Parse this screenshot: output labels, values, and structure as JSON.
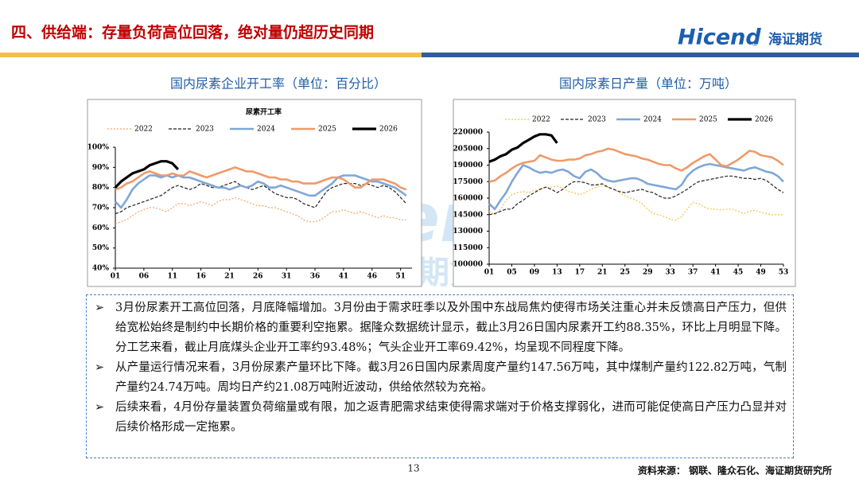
{
  "header": {
    "title": "四、供给端：存量负荷高位回落，绝对量仍超历史同期",
    "logo_en": "Hicend",
    "logo_mark": "®",
    "logo_cn": "海证期货"
  },
  "chart_data": [
    {
      "type": "line",
      "title": "国内尿素企业开工率（单位：百分比）",
      "inner_title": "尿素开工率",
      "x": [
        1,
        2,
        3,
        4,
        5,
        6,
        7,
        8,
        9,
        10,
        11,
        12,
        13,
        14,
        15,
        16,
        17,
        18,
        19,
        20,
        21,
        22,
        23,
        24,
        25,
        26,
        27,
        28,
        29,
        30,
        31,
        32,
        33,
        34,
        35,
        36,
        37,
        38,
        39,
        40,
        41,
        42,
        43,
        44,
        45,
        46,
        47,
        48,
        49,
        50,
        51,
        52
      ],
      "xlim": [
        1,
        53
      ],
      "xticks": [
        {
          "value": 1,
          "label": "01"
        },
        {
          "value": 6,
          "label": "06"
        },
        11,
        16,
        21,
        26,
        31,
        36,
        41,
        46,
        51
      ],
      "ylim": [
        40,
        100
      ],
      "yticks": [
        {
          "value": 40,
          "label": "40%"
        },
        {
          "value": 50,
          "label": "50%"
        },
        {
          "value": 60,
          "label": "60%"
        },
        {
          "value": 70,
          "label": "70%"
        },
        {
          "value": 80,
          "label": "80%"
        },
        {
          "value": 90,
          "label": "90%"
        },
        {
          "value": 100,
          "label": "100%"
        }
      ],
      "series": [
        {
          "name": "2022",
          "color": "#f4a46a",
          "linestyle": "dotted",
          "values": [
            62,
            63,
            64,
            66,
            68,
            69,
            70,
            70,
            69,
            68,
            70,
            72,
            72,
            71,
            72,
            73,
            72,
            71,
            73,
            74,
            74,
            75,
            74,
            73,
            72,
            71,
            71,
            70,
            70,
            69,
            68,
            67,
            66,
            64,
            63,
            63,
            64,
            66,
            68,
            68,
            69,
            68,
            67,
            68,
            67,
            66,
            65,
            66,
            65,
            65,
            64,
            64
          ]
        },
        {
          "name": "2023",
          "color": "#222222",
          "linestyle": "dashed",
          "values": [
            67,
            68,
            70,
            71,
            72,
            73,
            74,
            75,
            76,
            78,
            80,
            81,
            80,
            79,
            80,
            82,
            81,
            80,
            80,
            81,
            82,
            83,
            81,
            80,
            79,
            80,
            81,
            79,
            77,
            76,
            75,
            75,
            74,
            72,
            71,
            70,
            74,
            78,
            80,
            81,
            82,
            82,
            82,
            81,
            82,
            81,
            80,
            81,
            80,
            78,
            75,
            72
          ]
        },
        {
          "name": "2024",
          "color": "#7fa7d8",
          "linestyle": "solid",
          "values": [
            73,
            70,
            74,
            79,
            82,
            84,
            86,
            86,
            85,
            86,
            85,
            86,
            85,
            85,
            84,
            83,
            82,
            81,
            80,
            80,
            79,
            80,
            81,
            80,
            81,
            83,
            82,
            80,
            80,
            81,
            80,
            79,
            78,
            77,
            76,
            76,
            78,
            80,
            82,
            85,
            86,
            86,
            86,
            85,
            84,
            83,
            83,
            82,
            81,
            80,
            78,
            76
          ]
        },
        {
          "name": "2025",
          "color": "#ef9a6a",
          "linestyle": "solid",
          "values": [
            79,
            80,
            82,
            83,
            85,
            87,
            88,
            87,
            86,
            86,
            87,
            86,
            86,
            88,
            87,
            86,
            85,
            86,
            87,
            88,
            89,
            90,
            89,
            88,
            88,
            87,
            86,
            85,
            85,
            84,
            84,
            83,
            83,
            82,
            82,
            82,
            83,
            84,
            85,
            85,
            84,
            82,
            80,
            80,
            82,
            84,
            84,
            84,
            83,
            82,
            80,
            79
          ]
        },
        {
          "name": "2026",
          "color": "#000000",
          "linestyle": "bold",
          "values": [
            80,
            83,
            85,
            87,
            88,
            89,
            91,
            92,
            93,
            93,
            92,
            89,
            null,
            null,
            null,
            null,
            null,
            null,
            null,
            null,
            null,
            null,
            null,
            null,
            null,
            null,
            null,
            null,
            null,
            null,
            null,
            null,
            null,
            null,
            null,
            null,
            null,
            null,
            null,
            null,
            null,
            null,
            null,
            null,
            null,
            null,
            null,
            null,
            null,
            null,
            null,
            null
          ]
        }
      ]
    },
    {
      "type": "line",
      "title": "国内尿素日产量（单位：万吨）",
      "x": [
        1,
        2,
        3,
        4,
        5,
        6,
        7,
        8,
        9,
        10,
        11,
        12,
        13,
        14,
        15,
        16,
        17,
        18,
        19,
        20,
        21,
        22,
        23,
        24,
        25,
        26,
        27,
        28,
        29,
        30,
        31,
        32,
        33,
        34,
        35,
        36,
        37,
        38,
        39,
        40,
        41,
        42,
        43,
        44,
        45,
        46,
        47,
        48,
        49,
        50,
        51,
        52,
        53
      ],
      "xlim": [
        1,
        53
      ],
      "xticks": [
        {
          "value": 1,
          "label": "01"
        },
        {
          "value": 5,
          "label": "05"
        },
        {
          "value": 9,
          "label": "09"
        },
        13,
        17,
        21,
        25,
        29,
        33,
        37,
        41,
        45,
        49,
        53
      ],
      "ylim": [
        100000,
        220000
      ],
      "yticks": [
        100000,
        115000,
        130000,
        145000,
        160000,
        175000,
        190000,
        205000,
        220000
      ],
      "series": [
        {
          "name": "2022",
          "color": "#f5c242",
          "linestyle": "dotted",
          "values": [
            148000,
            145000,
            150000,
            158000,
            163000,
            165000,
            166000,
            165000,
            167000,
            168000,
            170000,
            170000,
            171000,
            169000,
            166000,
            165000,
            163000,
            165000,
            168000,
            170000,
            171000,
            170000,
            168000,
            165000,
            162000,
            160000,
            158000,
            155000,
            150000,
            146000,
            145000,
            143000,
            141000,
            140000,
            143000,
            150000,
            156000,
            155000,
            152000,
            150000,
            150000,
            149000,
            150000,
            150000,
            148000,
            146000,
            148000,
            149000,
            147000,
            146000,
            145000,
            145000,
            145000
          ]
        },
        {
          "name": "2023",
          "color": "#222222",
          "linestyle": "dashed",
          "values": [
            145000,
            146000,
            148000,
            150000,
            150000,
            155000,
            158000,
            162000,
            165000,
            168000,
            170000,
            168000,
            165000,
            168000,
            172000,
            175000,
            175000,
            174000,
            172000,
            172000,
            173000,
            170000,
            168000,
            166000,
            165000,
            166000,
            167000,
            168000,
            166000,
            165000,
            162000,
            160000,
            160000,
            162000,
            165000,
            168000,
            172000,
            175000,
            176000,
            177000,
            178000,
            179000,
            180000,
            180000,
            179000,
            178000,
            178000,
            177000,
            178000,
            176000,
            172000,
            168000,
            165000
          ]
        },
        {
          "name": "2024",
          "color": "#7fa7d8",
          "linestyle": "solid",
          "values": [
            155000,
            150000,
            158000,
            165000,
            175000,
            183000,
            190000,
            188000,
            185000,
            183000,
            184000,
            183000,
            185000,
            186000,
            184000,
            180000,
            178000,
            184000,
            186000,
            183000,
            178000,
            176000,
            175000,
            176000,
            177000,
            178000,
            178000,
            176000,
            173000,
            172000,
            171000,
            170000,
            169000,
            168000,
            172000,
            180000,
            185000,
            188000,
            190000,
            191000,
            190000,
            189000,
            188000,
            187000,
            186000,
            185000,
            187000,
            188000,
            186000,
            184000,
            183000,
            180000,
            175000
          ]
        },
        {
          "name": "2025",
          "color": "#ef9a6a",
          "linestyle": "solid",
          "values": [
            175000,
            176000,
            180000,
            183000,
            187000,
            190000,
            192000,
            193000,
            194000,
            199000,
            197000,
            195000,
            194000,
            194000,
            195000,
            195000,
            196000,
            199000,
            200000,
            202000,
            203000,
            205000,
            204000,
            202000,
            200000,
            199000,
            198000,
            196000,
            195000,
            193000,
            191000,
            190000,
            190000,
            187000,
            185000,
            188000,
            192000,
            195000,
            198000,
            200000,
            195000,
            190000,
            189000,
            192000,
            195000,
            199000,
            203000,
            202000,
            199000,
            198000,
            197000,
            194000,
            190000
          ]
        },
        {
          "name": "2026",
          "color": "#000000",
          "linestyle": "bold",
          "values": [
            193000,
            195000,
            198000,
            200000,
            204000,
            206000,
            210000,
            213000,
            216000,
            218000,
            218000,
            217000,
            210000,
            null,
            null,
            null,
            null,
            null,
            null,
            null,
            null,
            null,
            null,
            null,
            null,
            null,
            null,
            null,
            null,
            null,
            null,
            null,
            null,
            null,
            null,
            null,
            null,
            null,
            null,
            null,
            null,
            null,
            null,
            null,
            null,
            null,
            null,
            null,
            null,
            null,
            null,
            null,
            null
          ]
        }
      ]
    }
  ],
  "text": {
    "bullet": "➢",
    "paragraphs": [
      "3月份尿素开工高位回落，月底降幅增加。3月份由于需求旺季以及外围中东战局焦灼使得市场关注重心并未反馈高日产压力，但供给宽松始终是制约中长期价格的重要利空拖累。据隆众数据统计显示，截止3月26日国内尿素开工约88.35%，环比上月明显下降。分工艺来看，截止月底煤头企业开工率约93.48%；气头企业开工率69.42%，均呈现不同程度下降。",
      "从产量运行情况来看，3月份尿素产量环比下降。截3月26日国内尿素周度产量约147.56万吨，其中煤制产量约122.82万吨，气制产量约24.74万吨。周均日产约21.08万吨附近波动，供给依然较为充裕。",
      "后续来看，4月份存量装置负荷缩量或有限，加之返青肥需求结束使得需求端对于价格支撑弱化，进而可能促使高日产压力凸显并对后续价格形成一定拖累。"
    ]
  },
  "footer": {
    "page": "13",
    "source": "资料来源：  钢联、隆众石化、海证期货研究所"
  }
}
